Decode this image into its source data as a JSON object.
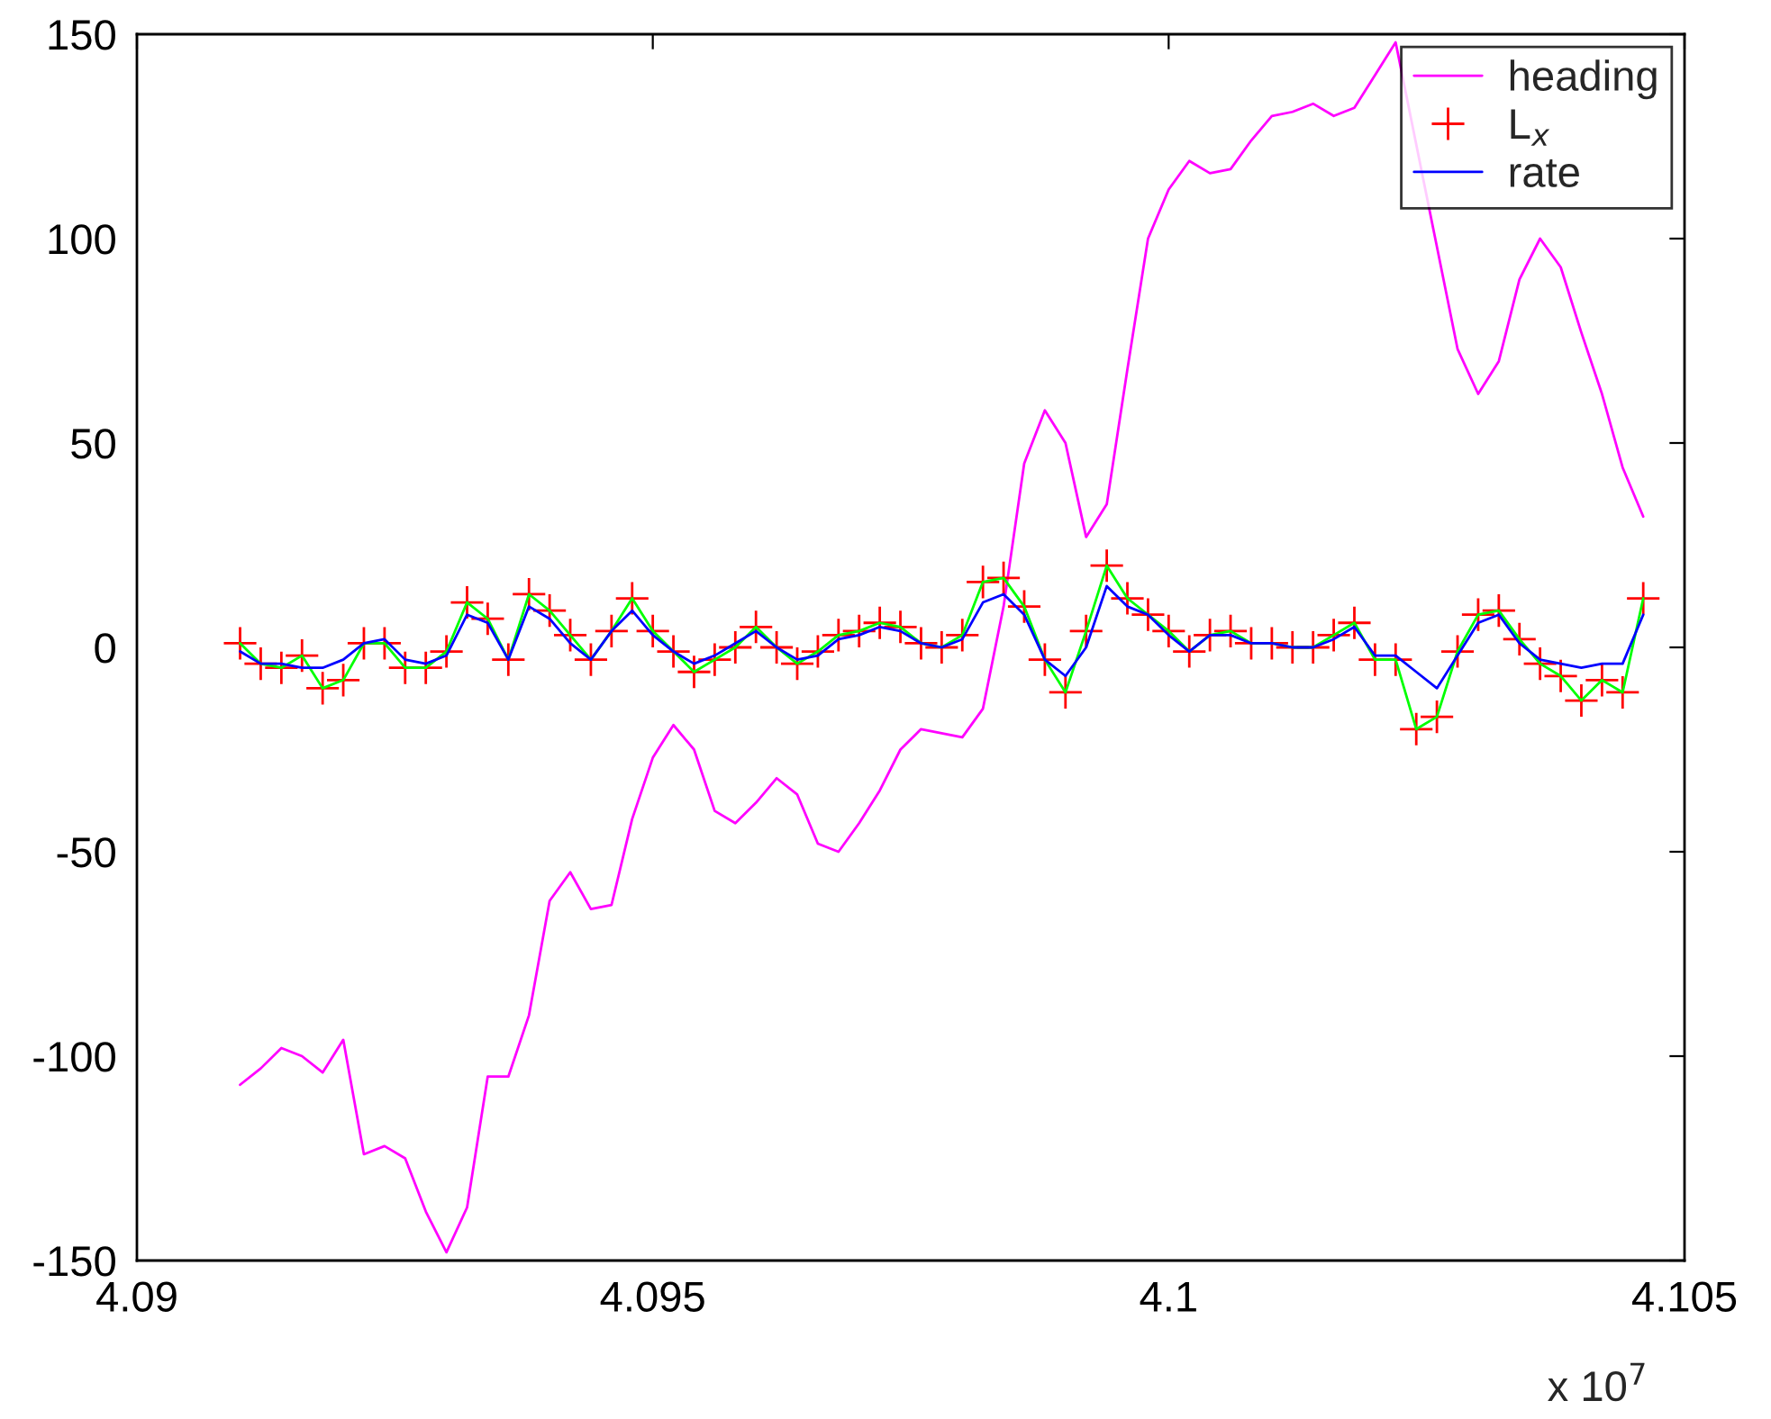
{
  "chart_data": {
    "type": "line",
    "x": [
      4.091,
      4.0912,
      4.0914,
      4.0916,
      4.0918,
      4.092,
      4.0922,
      4.0924,
      4.0926,
      4.0928,
      4.093,
      4.0932,
      4.0934,
      4.0936,
      4.0938,
      4.094,
      4.0942,
      4.0944,
      4.0946,
      4.0948,
      4.095,
      4.0952,
      4.0954,
      4.0956,
      4.0958,
      4.096,
      4.0962,
      4.0964,
      4.0966,
      4.0968,
      4.097,
      4.0972,
      4.0974,
      4.0976,
      4.0978,
      4.098,
      4.0982,
      4.0984,
      4.0986,
      4.0988,
      4.099,
      4.0992,
      4.0994,
      4.0996,
      4.0998,
      4.1,
      4.1002,
      4.1004,
      4.1006,
      4.1008,
      4.101,
      4.1012,
      4.1014,
      4.1016,
      4.1018,
      4.102,
      4.1022,
      4.1024,
      4.1026,
      4.1028,
      4.103,
      4.1032,
      4.1034,
      4.1036,
      4.1038,
      4.104,
      4.1042,
      4.1044,
      4.1046
    ],
    "series": [
      {
        "name": "heading",
        "color": "#ff00ff",
        "line_style": "solid",
        "marker": "none",
        "values": [
          -107,
          -103,
          -98,
          -100,
          -104,
          -96,
          -124,
          -122,
          -125,
          -138,
          -148,
          -137,
          -105,
          -105,
          -90,
          -62,
          -55,
          -64,
          -63,
          -42,
          -27,
          -19,
          -25,
          -40,
          -43,
          -38,
          -32,
          -36,
          -48,
          -50,
          -43,
          -35,
          -25,
          -20,
          -21,
          -22,
          -15,
          10,
          45,
          58,
          50,
          27,
          35,
          68,
          100,
          112,
          119,
          116,
          117,
          124,
          130,
          131,
          133,
          130,
          132,
          140,
          148,
          null,
          98,
          73,
          62,
          70,
          90,
          100,
          93,
          77,
          62,
          44,
          32
        ]
      },
      {
        "name": "L$_{x}$",
        "type": "scatter",
        "color": "#ff0000",
        "marker": "cross",
        "values": [
          1,
          -4,
          -5,
          -2,
          -10,
          -8,
          1,
          1,
          -5,
          -5,
          -1,
          11,
          7,
          -3,
          13,
          9,
          3,
          -3,
          4,
          12,
          4,
          -1,
          -6,
          -3,
          0,
          5,
          0,
          -4,
          -1,
          3,
          4,
          6,
          5,
          1,
          0,
          3,
          16,
          17,
          10,
          -3,
          -11,
          4,
          20,
          12,
          8,
          4,
          -1,
          3,
          4,
          1,
          1,
          0,
          0,
          3,
          6,
          -3,
          -3,
          -20,
          -17,
          -1,
          8,
          9,
          2,
          -4,
          -7,
          -13,
          -8,
          -11,
          12
        ]
      },
      {
        "color": "#00ff00",
        "line_style": "solid",
        "marker": "none",
        "values": [
          1,
          -4,
          -5,
          -2,
          -10,
          -8,
          1,
          1,
          -5,
          -5,
          -1,
          11,
          7,
          -3,
          13,
          9,
          3,
          -3,
          4,
          12,
          4,
          -1,
          -6,
          -3,
          0,
          5,
          0,
          -4,
          -1,
          3,
          4,
          6,
          5,
          1,
          0,
          3,
          16,
          17,
          10,
          -3,
          -11,
          4,
          20,
          12,
          8,
          4,
          -1,
          3,
          4,
          1,
          1,
          0,
          0,
          3,
          6,
          -3,
          -3,
          -20,
          -17,
          -1,
          8,
          9,
          2,
          -4,
          -7,
          -13,
          -8,
          -11,
          12
        ]
      },
      {
        "name": "rate",
        "color": "#0000ff",
        "line_style": "solid",
        "marker": "none",
        "values": [
          -1,
          -4,
          -4,
          -5,
          -5,
          -3,
          1,
          2,
          -3,
          -4,
          -2,
          8,
          6,
          -3,
          10,
          7,
          1,
          -3,
          4,
          9,
          3,
          -1,
          -4,
          -2,
          1,
          4,
          0,
          -3,
          -2,
          2,
          3,
          5,
          4,
          1,
          0,
          2,
          11,
          13,
          8,
          -3,
          -7,
          0,
          15,
          10,
          8,
          3,
          -1,
          3,
          3,
          1,
          1,
          0,
          0,
          2,
          5,
          -2,
          -2,
          -6,
          -10,
          -2,
          6,
          8,
          1,
          -3,
          -4,
          -5,
          -4,
          -4,
          8
        ]
      }
    ],
    "xlim": [
      4.09,
      4.105
    ],
    "xticks": [
      4.09,
      4.095,
      {
        "value": 4.1,
        "label": "4.1"
      },
      4.105
    ],
    "ylim": [
      -150,
      150
    ],
    "yticks": [
      -150,
      -100,
      -50,
      0,
      50,
      100,
      150
    ],
    "grid": false,
    "legend": "top right",
    "annotations": [
      "x 10$^{7}$"
    ]
  }
}
